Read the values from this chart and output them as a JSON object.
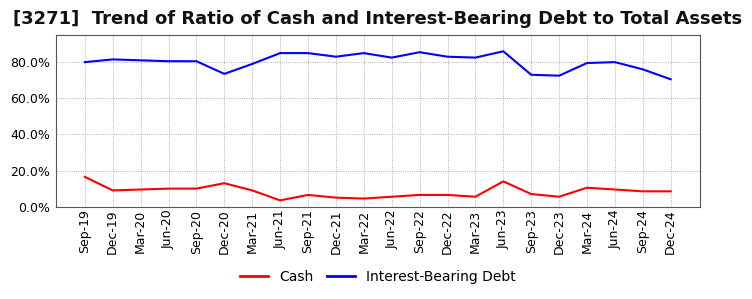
{
  "title": "[3271]  Trend of Ratio of Cash and Interest-Bearing Debt to Total Assets",
  "x_labels": [
    "Sep-19",
    "Dec-19",
    "Mar-20",
    "Jun-20",
    "Sep-20",
    "Dec-20",
    "Mar-21",
    "Jun-21",
    "Sep-21",
    "Dec-21",
    "Mar-22",
    "Jun-22",
    "Sep-22",
    "Dec-22",
    "Mar-23",
    "Jun-23",
    "Sep-23",
    "Dec-23",
    "Mar-24",
    "Jun-24",
    "Sep-24",
    "Dec-24"
  ],
  "cash": [
    16.5,
    9.0,
    9.5,
    10.0,
    10.0,
    13.0,
    9.0,
    3.5,
    6.5,
    5.0,
    4.5,
    5.5,
    6.5,
    6.5,
    5.5,
    14.0,
    7.0,
    5.5,
    10.5,
    9.5,
    8.5,
    8.5
  ],
  "ibd": [
    80.0,
    81.5,
    81.0,
    80.5,
    80.5,
    73.5,
    79.0,
    85.0,
    85.0,
    83.0,
    85.0,
    82.5,
    85.5,
    83.0,
    82.5,
    86.0,
    73.0,
    72.5,
    79.5,
    80.0,
    76.0,
    70.5
  ],
  "cash_color": "#FF0000",
  "ibd_color": "#0000FF",
  "ylim": [
    0,
    95
  ],
  "yticks": [
    0,
    20,
    40,
    60,
    80
  ],
  "background_color": "#FFFFFF",
  "grid_color": "#999999",
  "title_fontsize": 13,
  "tick_fontsize": 9,
  "legend_labels": [
    "Cash",
    "Interest-Bearing Debt"
  ]
}
